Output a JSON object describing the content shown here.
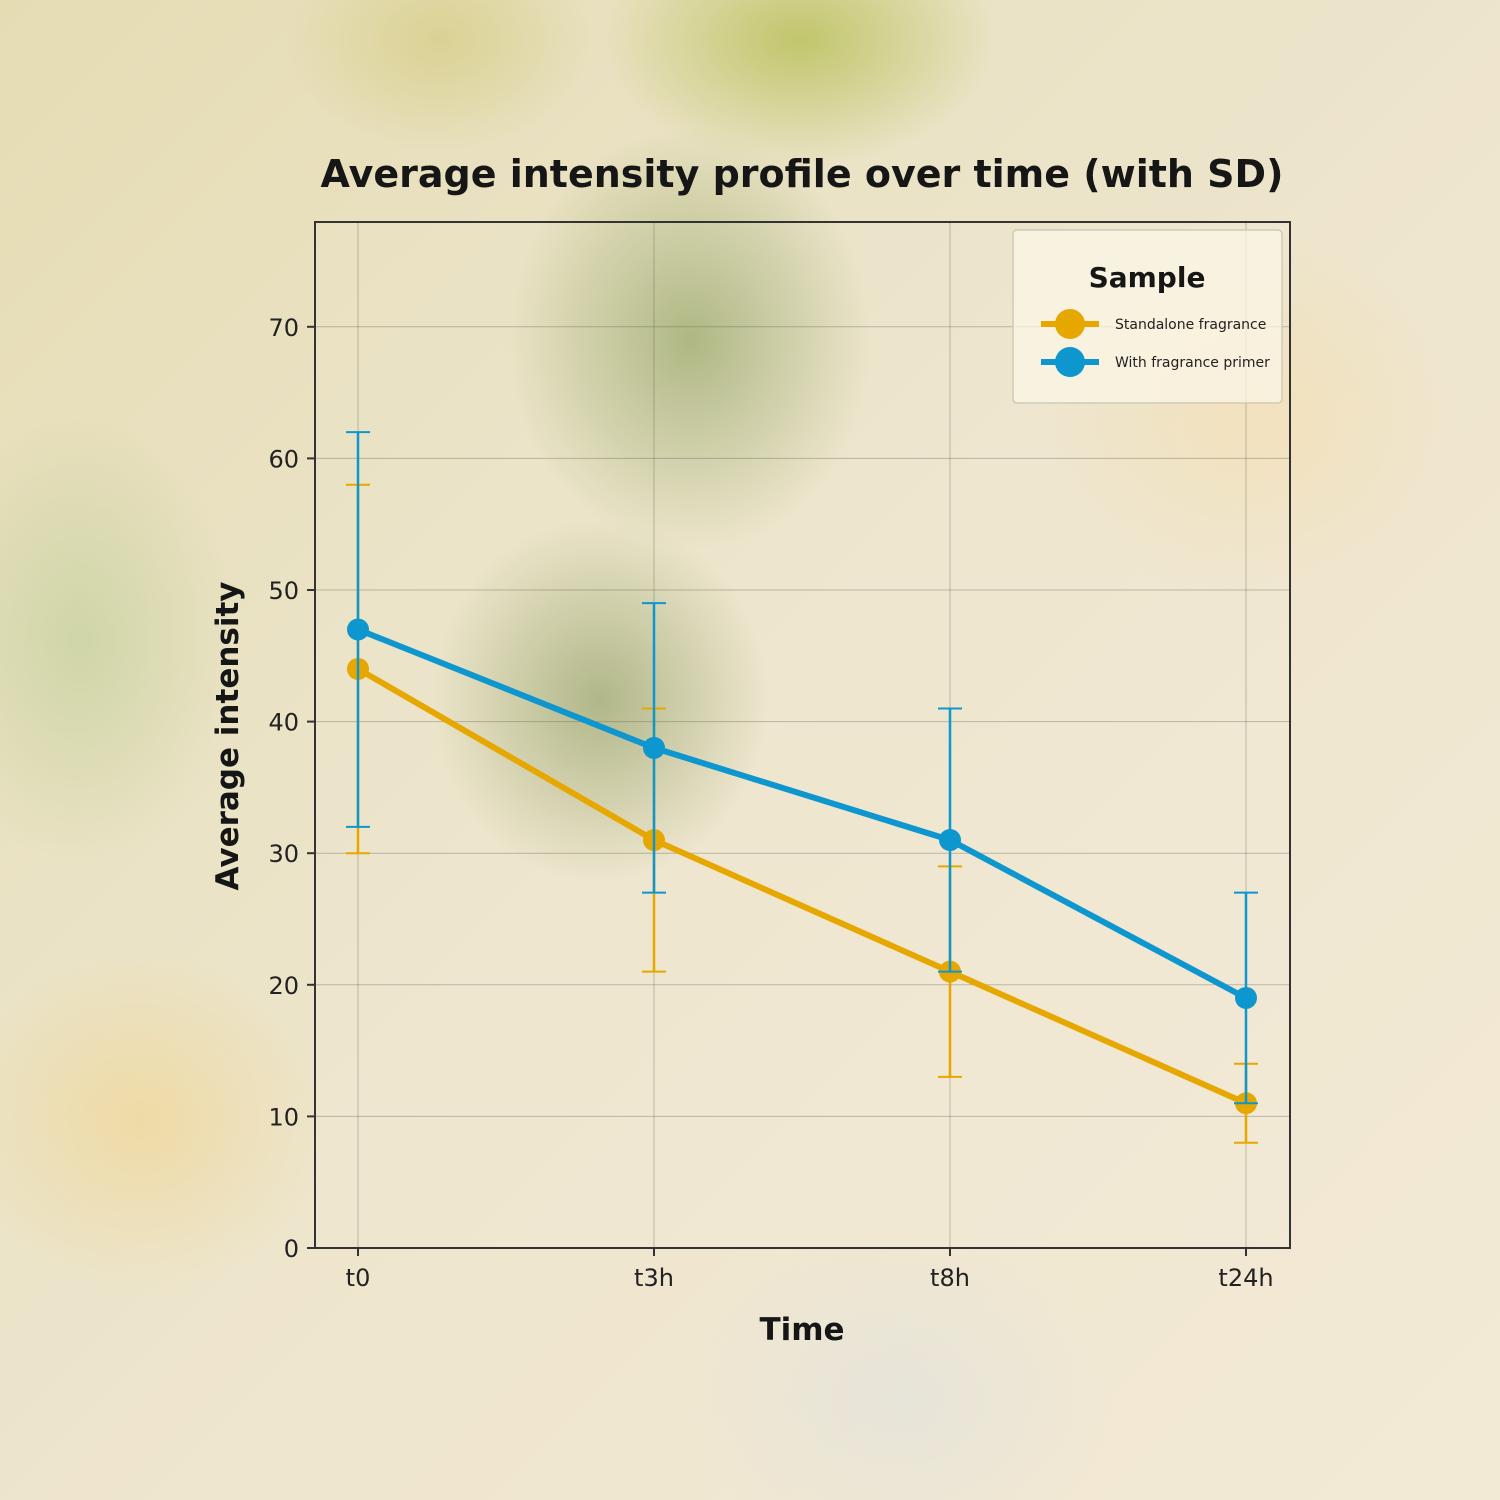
{
  "chart_data": {
    "type": "line",
    "title": "Average intensity profile over time (with SD)",
    "xlabel": "Time",
    "ylabel": "Average intensity",
    "categories": [
      "t0",
      "t3h",
      "t8h",
      "t24h"
    ],
    "ylim": [
      0,
      78
    ],
    "yticks": [
      0,
      10,
      20,
      30,
      40,
      50,
      60,
      70
    ],
    "grid": true,
    "legend": {
      "title": "Sample",
      "position": "top-right"
    },
    "series": [
      {
        "name": "Standalone fragrance",
        "color": "#E6A800",
        "values": [
          44,
          31,
          21,
          11
        ],
        "sd": [
          14,
          10,
          8,
          3
        ]
      },
      {
        "name": "With fragrance primer",
        "color": "#0E96CE",
        "values": [
          47,
          38,
          31,
          19
        ],
        "sd": [
          15,
          11,
          10,
          8
        ]
      }
    ]
  }
}
